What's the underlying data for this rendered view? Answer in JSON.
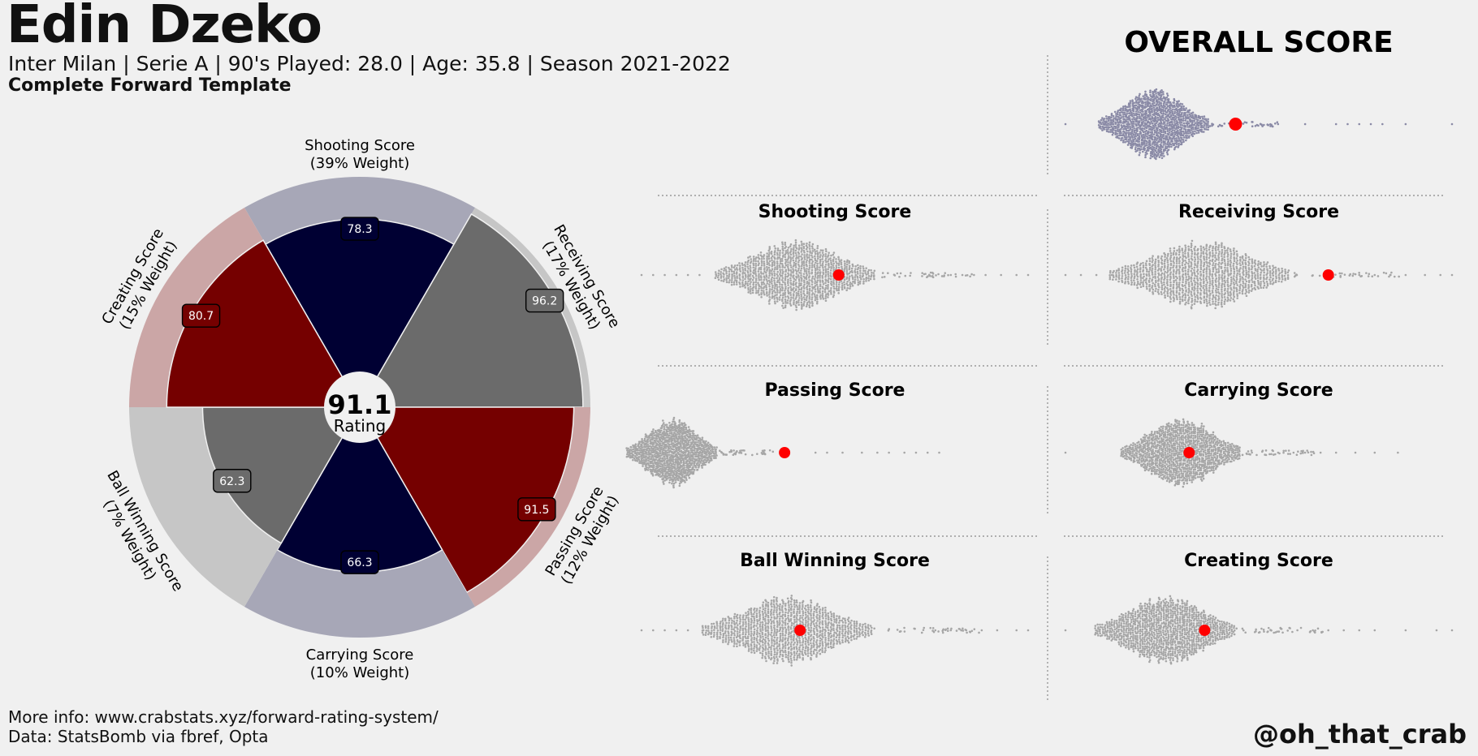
{
  "header": {
    "title": "Edin Dzeko",
    "subtitle": "Inter Milan  | Serie A | 90's Played: 28.0 | Age: 35.8 | Season 2021-2022",
    "template": "Complete Forward Template"
  },
  "footer": {
    "more_info": "More info: www.crabstats.xyz/forward-rating-system/",
    "data_source": "Data: StatsBomb via fbref, Opta",
    "credit": "@oh_that_crab"
  },
  "colors": {
    "background": "#f0f0f0",
    "navy": "#000033",
    "navy_outer": "#a7a7b7",
    "red": "#750000",
    "red_outer": "#cba6a6",
    "grey": "#6b6b6b",
    "grey_outer": "#c6c6c6",
    "swarm_overall": "#8a8aa6",
    "swarm_dot": "#a6a6a6",
    "highlight": "#ff0000"
  },
  "chart_data": [
    {
      "type": "pie",
      "center_value": "91.1",
      "center_label": "Rating",
      "categories": [
        {
          "label_1": "Shooting Score",
          "label_2": "(39% Weight)",
          "value": 78.3,
          "value_label": "78.3",
          "color": "navy"
        },
        {
          "label_1": "Receiving Score",
          "label_2": "(17% Weight)",
          "value": 96.2,
          "value_label": "96.2",
          "color": "grey"
        },
        {
          "label_1": "Passing Score",
          "label_2": "(12% Weight)",
          "value": 91.5,
          "value_label": "91.5",
          "color": "red"
        },
        {
          "label_1": "Carrying Score",
          "label_2": "(10% Weight)",
          "value": 66.3,
          "value_label": "66.3",
          "color": "navy"
        },
        {
          "label_1": "Ball Winning Score",
          "label_2": "(7% Weight)",
          "value": 62.3,
          "value_label": "62.3",
          "color": "grey"
        },
        {
          "label_1": "Creating Score",
          "label_2": "(15% Weight)",
          "value": 80.7,
          "value_label": "80.7",
          "color": "red"
        }
      ]
    },
    {
      "type": "scatter",
      "title": "OVERALL SCORE",
      "xlim": [
        0,
        100
      ],
      "highlight_value": 44,
      "distribution_mode": 23,
      "spread": 11,
      "outliers": [
        0,
        55,
        62,
        70,
        73,
        76,
        79,
        82,
        88,
        100
      ],
      "color": "swarm_overall"
    },
    {
      "type": "scatter",
      "title": "Shooting Score",
      "xlim": [
        0,
        100
      ],
      "highlight_value": 51,
      "distribution_mode": 40,
      "spread": 16,
      "outliers": [
        0,
        3,
        6,
        9,
        12,
        15,
        80,
        83,
        86,
        89,
        93,
        97,
        100
      ],
      "color": "swarm_dot"
    },
    {
      "type": "scatter",
      "title": "Receiving Score",
      "xlim": [
        0,
        100
      ],
      "highlight_value": 68,
      "distribution_mode": 35,
      "spread": 18,
      "outliers": [
        0,
        4,
        8,
        12,
        76,
        80,
        84,
        88,
        93,
        97,
        100
      ],
      "color": "swarm_dot"
    },
    {
      "type": "scatter",
      "title": "Passing Score",
      "xlim": [
        0,
        100
      ],
      "highlight_value": 37,
      "distribution_mode": 8,
      "spread": 9,
      "outliers": [
        0,
        45,
        48,
        52,
        57,
        61,
        64,
        68,
        71,
        74,
        77
      ],
      "color": "swarm_dot"
    },
    {
      "type": "scatter",
      "title": "Carrying Score",
      "xlim": [
        0,
        100
      ],
      "highlight_value": 32,
      "distribution_mode": 30,
      "spread": 12,
      "outliers": [
        0,
        55,
        59,
        62,
        66,
        70,
        75,
        80,
        86
      ],
      "color": "swarm_dot"
    },
    {
      "type": "scatter",
      "title": "Ball Winning Score",
      "xlim": [
        0,
        100
      ],
      "highlight_value": 41,
      "distribution_mode": 38,
      "spread": 17,
      "outliers": [
        0,
        3,
        6,
        9,
        12,
        16,
        76,
        80,
        84,
        88,
        92,
        97,
        100
      ],
      "color": "swarm_dot"
    },
    {
      "type": "scatter",
      "title": "Creating Score",
      "xlim": [
        0,
        100
      ],
      "highlight_value": 36,
      "distribution_mode": 26,
      "spread": 14,
      "outliers": [
        0,
        60,
        64,
        68,
        72,
        76,
        80,
        88,
        96,
        100
      ],
      "color": "swarm_dot"
    }
  ]
}
